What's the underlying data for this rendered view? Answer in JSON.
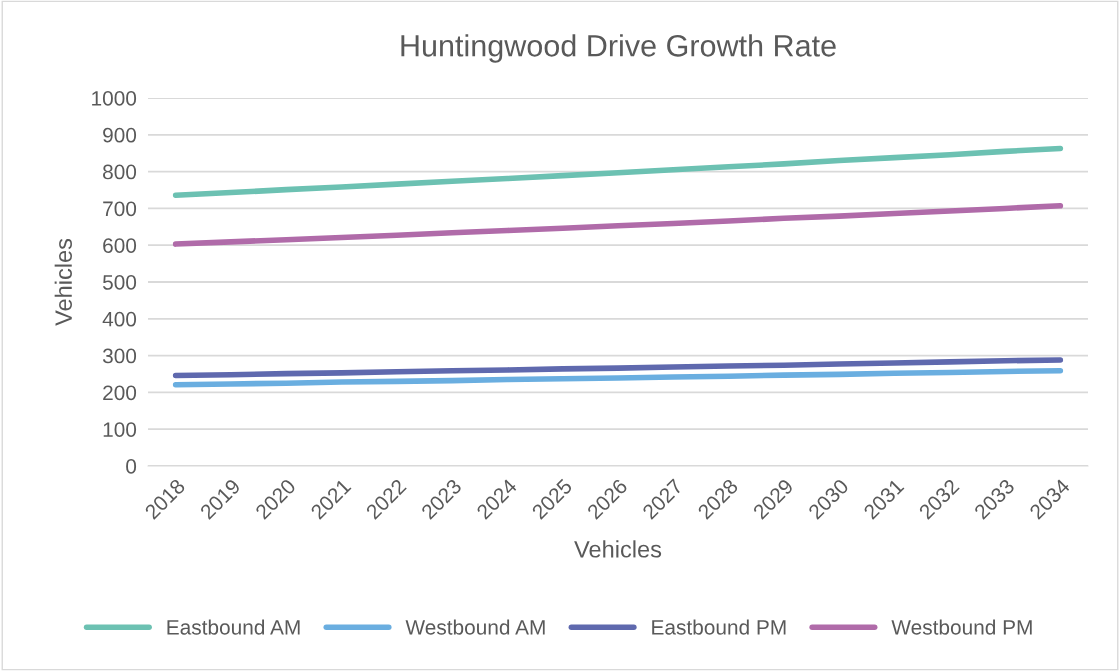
{
  "chart_data": {
    "type": "line",
    "title": "Huntingwood Drive Growth Rate",
    "xlabel": "Vehicles",
    "ylabel": "Vehicles",
    "categories": [
      "2018",
      "2019",
      "2020",
      "2021",
      "2022",
      "2023",
      "2024",
      "2025",
      "2026",
      "2027",
      "2028",
      "2029",
      "2030",
      "2031",
      "2032",
      "2033",
      "2034"
    ],
    "series": [
      {
        "name": "Eastbound AM",
        "color": "#6cc1b2",
        "values": [
          736,
          743,
          751,
          758,
          766,
          774,
          781,
          789,
          797,
          805,
          813,
          821,
          830,
          838,
          846,
          855,
          863
        ]
      },
      {
        "name": "Westbound AM",
        "color": "#6aaee0",
        "values": [
          221,
          223,
          225,
          228,
          230,
          232,
          235,
          237,
          239,
          242,
          244,
          247,
          249,
          252,
          254,
          257,
          259
        ]
      },
      {
        "name": "Eastbound PM",
        "color": "#5f69ae",
        "values": [
          246,
          248,
          251,
          253,
          256,
          259,
          261,
          264,
          266,
          269,
          272,
          274,
          277,
          280,
          283,
          286,
          288
        ]
      },
      {
        "name": "Westbound PM",
        "color": "#b06ba9",
        "values": [
          603,
          609,
          615,
          621,
          627,
          634,
          640,
          646,
          653,
          659,
          666,
          673,
          679,
          686,
          693,
          700,
          707
        ]
      }
    ],
    "ylim": [
      0,
      1000
    ],
    "yticks": [
      0,
      100,
      200,
      300,
      400,
      500,
      600,
      700,
      800,
      900,
      1000
    ],
    "grid": "y",
    "legend": "bottom",
    "marker": "none",
    "line_style": "solid"
  }
}
